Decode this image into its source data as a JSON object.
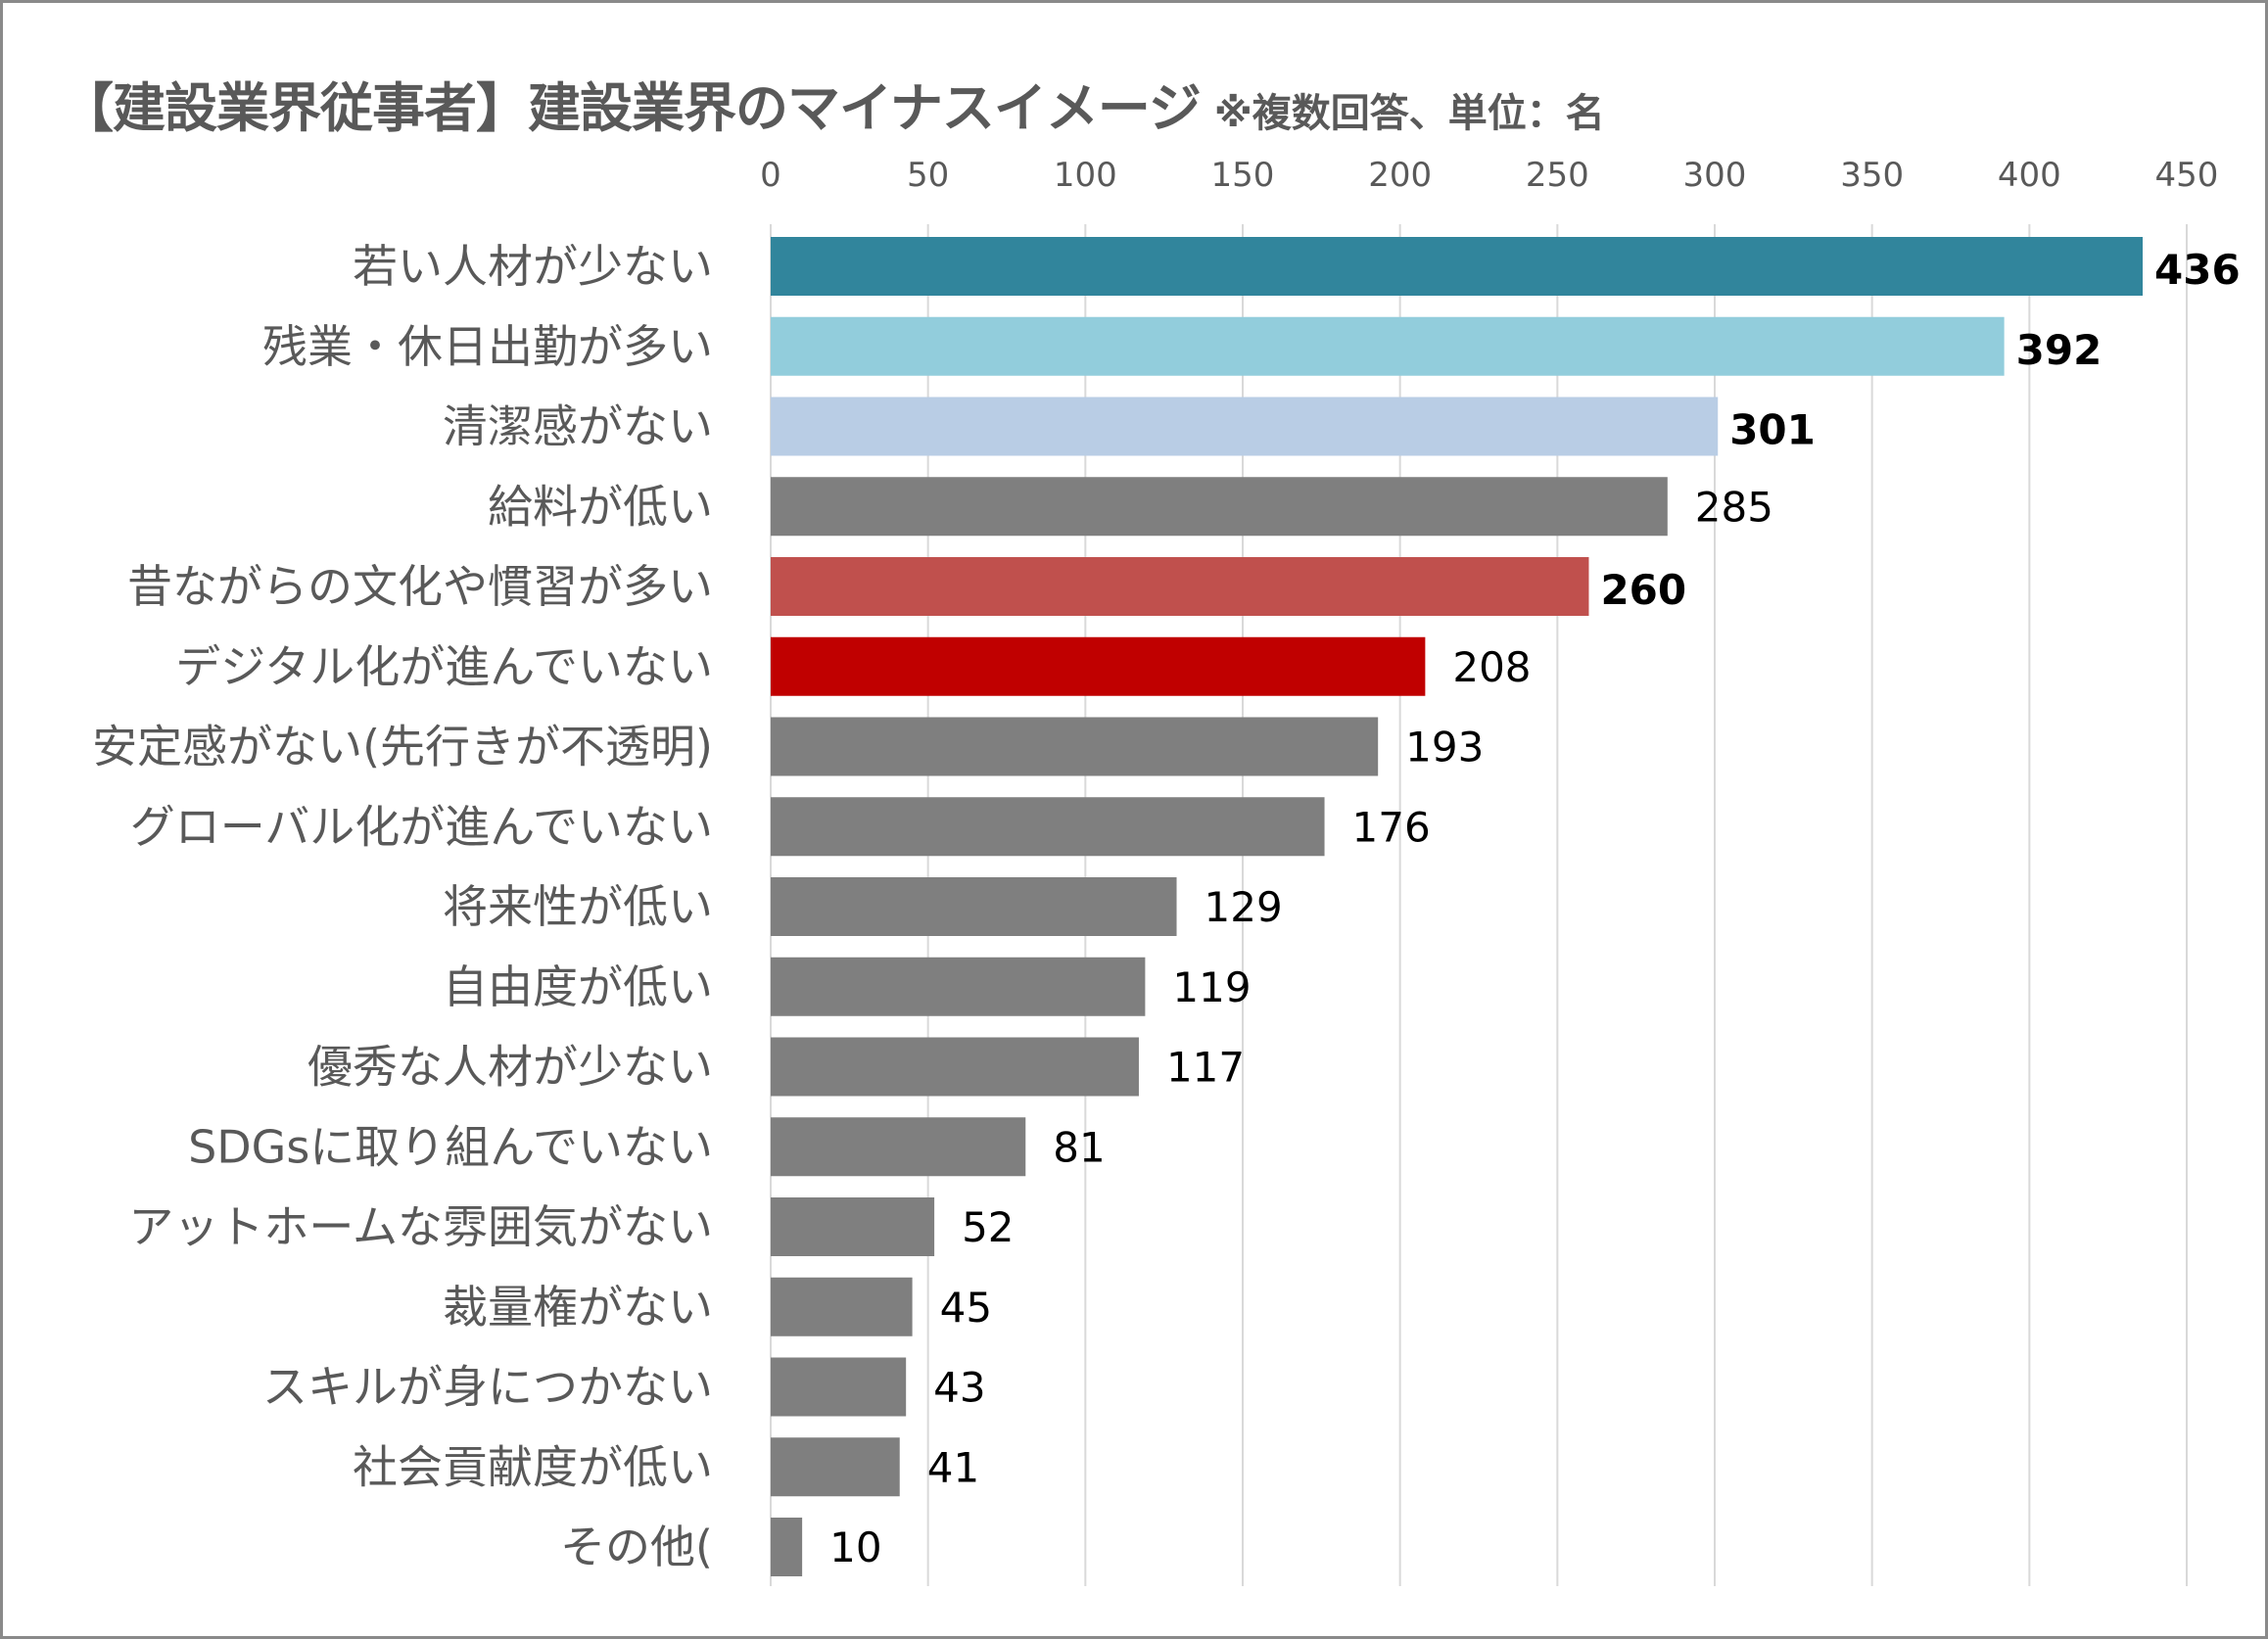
{
  "chart_data": {
    "type": "bar",
    "orientation": "horizontal",
    "title": "【建設業界従事者】建設業界のマイナスイメージ",
    "subtitle": "※複数回答、単位：名",
    "xlim": [
      0,
      450
    ],
    "xticks": [
      0,
      50,
      100,
      150,
      200,
      250,
      300,
      350,
      400,
      450
    ],
    "axis_position": "top",
    "grid": true,
    "categories": [
      "若い人材が少ない",
      "残業・休日出勤が多い",
      "清潔感がない",
      "給料が低い",
      "昔ながらの文化や慣習が多い",
      "デジタル化が進んでいない",
      "安定感がない(先行きが不透明)",
      "グローバル化が進んでいない",
      "将来性が低い",
      "自由度が低い",
      "優秀な人材が少ない",
      "SDGsに取り組んでいない",
      "アットホームな雰囲気がない",
      "裁量権がない",
      "スキルが身につかない",
      "社会貢献度が低い",
      "その他("
    ],
    "values": [
      436,
      392,
      301,
      285,
      260,
      208,
      193,
      176,
      129,
      119,
      117,
      81,
      52,
      45,
      43,
      41,
      10
    ],
    "bar_colors": [
      "#31859c",
      "#92cddc",
      "#b9cde5",
      "#7f7f7f",
      "#c0504d",
      "#c00000",
      "#7f7f7f",
      "#7f7f7f",
      "#7f7f7f",
      "#7f7f7f",
      "#7f7f7f",
      "#7f7f7f",
      "#7f7f7f",
      "#7f7f7f",
      "#7f7f7f",
      "#7f7f7f",
      "#7f7f7f"
    ],
    "label_colors": [
      "#000000",
      "#000000",
      "#000000",
      "#000000",
      "#c00000",
      "#c00000",
      "#000000",
      "#000000",
      "#000000",
      "#000000",
      "#000000",
      "#000000",
      "#000000",
      "#000000",
      "#000000",
      "#000000",
      "#000000"
    ],
    "label_bold": [
      true,
      true,
      true,
      false,
      true,
      false,
      false,
      false,
      false,
      false,
      false,
      false,
      false,
      false,
      false,
      false,
      false
    ]
  }
}
